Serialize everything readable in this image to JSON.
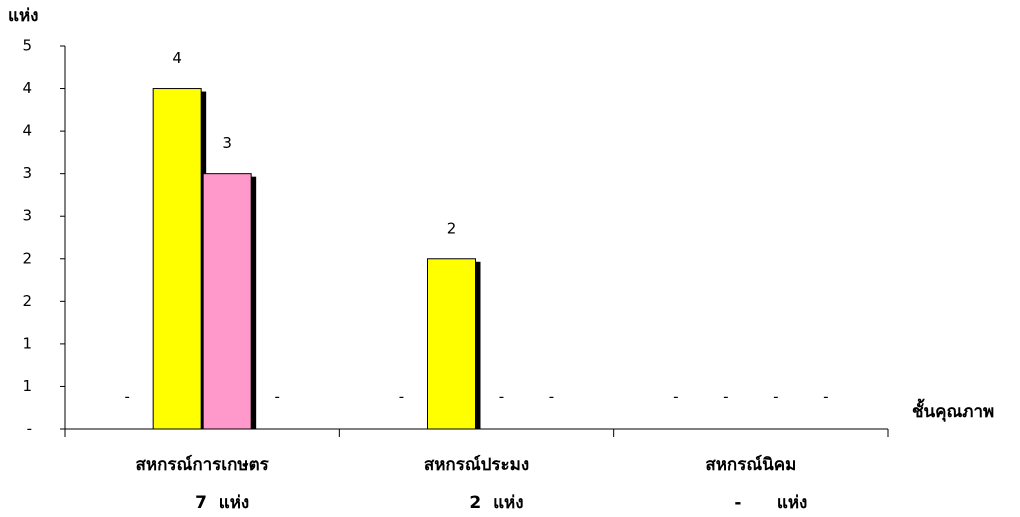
{
  "chart_data": {
    "type": "bar",
    "y_label": "แห่ง",
    "x_label": "ชั้นคุณภาพ",
    "categories": [
      "สหกรณ์การเกษตร",
      "สหกรณ์ประมง",
      "สหกรณ์นิคม"
    ],
    "category_notes": [
      "7  แห่ง",
      "2  แห่ง",
      "-      แห่ง"
    ],
    "series": [
      {
        "values": [
          0,
          0,
          0
        ],
        "value_labels": [
          "-",
          "-",
          "-"
        ]
      },
      {
        "color": "#ffff00",
        "values": [
          4,
          2,
          0
        ],
        "value_labels": [
          "4",
          "2",
          "-"
        ]
      },
      {
        "color": "#ff99cc",
        "values": [
          3,
          0,
          0
        ],
        "value_labels": [
          "3",
          "-",
          "-"
        ]
      },
      {
        "values": [
          0,
          0,
          0
        ],
        "value_labels": [
          "-",
          "-",
          "-"
        ]
      }
    ],
    "ylim": [
      0,
      4.5
    ],
    "yticks": [
      {
        "value": 0,
        "label": "-"
      },
      {
        "value": 0.5,
        "label": "1"
      },
      {
        "value": 1,
        "label": "1"
      },
      {
        "value": 1.5,
        "label": "2"
      },
      {
        "value": 2,
        "label": "2"
      },
      {
        "value": 2.5,
        "label": "3"
      },
      {
        "value": 3,
        "label": "3"
      },
      {
        "value": 3.5,
        "label": "4"
      },
      {
        "value": 4,
        "label": "4"
      },
      {
        "value": 4.5,
        "label": "5"
      }
    ],
    "grid": false
  }
}
